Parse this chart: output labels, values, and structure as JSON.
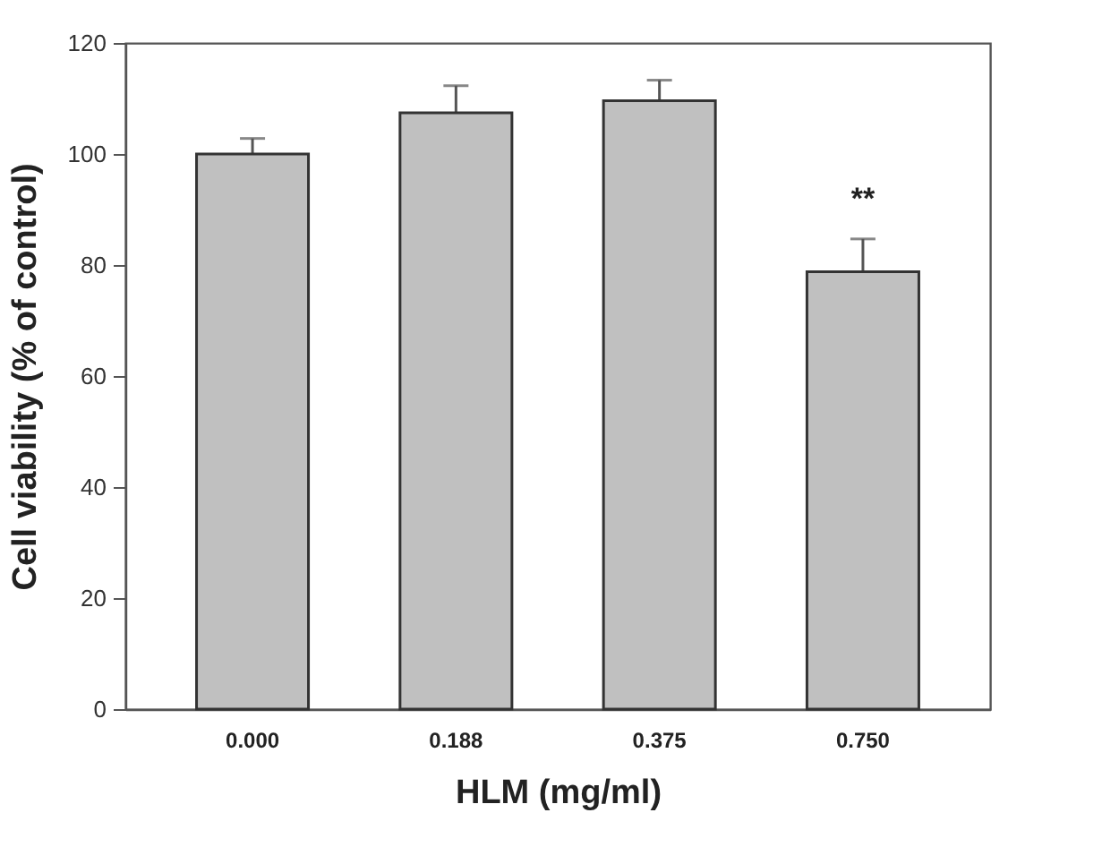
{
  "chart_data": {
    "type": "bar",
    "xlabel": "HLM (mg/ml)",
    "ylabel": "Cell viability (% of control)",
    "categories": [
      "0.000",
      "0.188",
      "0.375",
      "0.750"
    ],
    "values": [
      100,
      107.4,
      109.6,
      78.8
    ],
    "errors": [
      2.8,
      4.9,
      3.7,
      5.9
    ],
    "color": "#c0c0c0",
    "ylim": [
      0,
      120
    ],
    "yticks": [
      0,
      20,
      40,
      60,
      80,
      100,
      120
    ],
    "annotations": [
      "**"
    ]
  }
}
